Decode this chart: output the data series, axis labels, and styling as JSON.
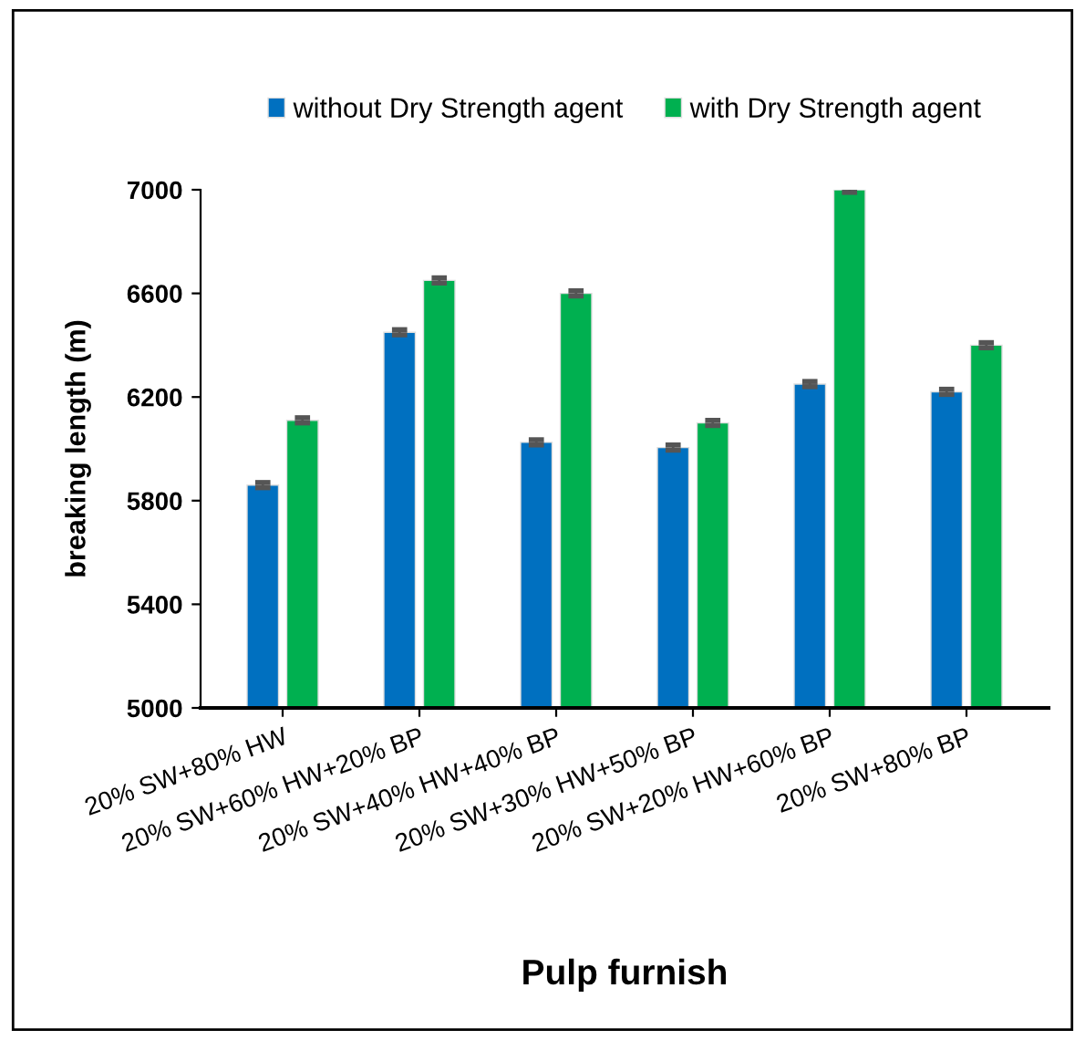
{
  "chart_data": {
    "type": "bar",
    "xlabel": "Pulp furnish",
    "ylabel": "breaking length (m)",
    "categories": [
      "20% SW+80% HW",
      "20% SW+60% HW+20% BP",
      "20% SW+40% HW+40% BP",
      "20% SW+30% HW+50% BP",
      "20% SW+20% HW+60% BP",
      "20% SW+80% BP"
    ],
    "series": [
      {
        "name": "without Dry Strength agent",
        "color": "#0070c0",
        "values": [
          5860,
          6450,
          6025,
          6005,
          6250,
          6220
        ],
        "errors": [
          10,
          10,
          10,
          10,
          10,
          10
        ]
      },
      {
        "name": "with Dry Strength agent",
        "color": "#00b050",
        "values": [
          6110,
          6650,
          6600,
          6100,
          7000,
          6400
        ],
        "errors": [
          10,
          10,
          10,
          10,
          10,
          10
        ]
      }
    ],
    "ylim": [
      5000,
      7000
    ],
    "yticks": [
      5000,
      5400,
      5800,
      6200,
      6600,
      7000
    ],
    "grid": false,
    "legend": "top"
  }
}
